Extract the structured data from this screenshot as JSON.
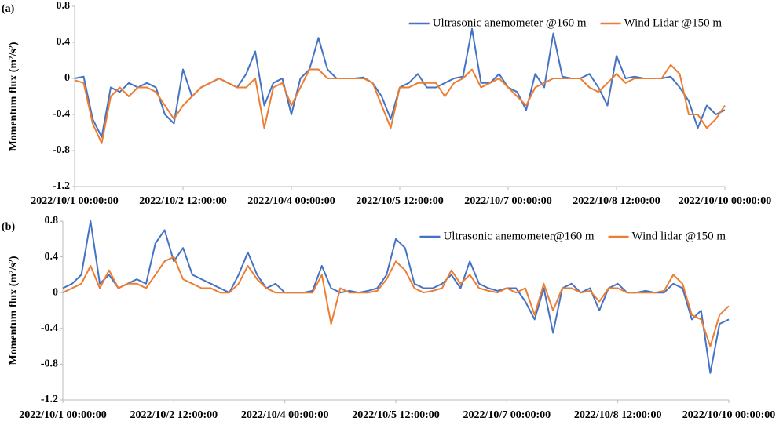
{
  "chart_data": [
    {
      "type": "line",
      "label": "(a)",
      "ylabel": "Momentum flux (m²/s²)",
      "legend": "upper right",
      "grid": false,
      "x": [
        "2022/10/1 00:00:00",
        "2022/10/1 03:00:00",
        "2022/10/1 06:00:00",
        "2022/10/1 09:00:00",
        "2022/10/1 12:00:00",
        "2022/10/1 15:00:00",
        "2022/10/1 18:00:00",
        "2022/10/1 21:00:00",
        "2022/10/2 00:00:00",
        "2022/10/2 03:00:00",
        "2022/10/2 06:00:00",
        "2022/10/2 09:00:00",
        "2022/10/2 12:00:00",
        "2022/10/2 15:00:00",
        "2022/10/2 18:00:00",
        "2022/10/2 21:00:00",
        "2022/10/3 00:00:00",
        "2022/10/3 03:00:00",
        "2022/10/3 06:00:00",
        "2022/10/3 09:00:00",
        "2022/10/3 12:00:00",
        "2022/10/3 15:00:00",
        "2022/10/3 18:00:00",
        "2022/10/3 21:00:00",
        "2022/10/4 00:00:00",
        "2022/10/4 03:00:00",
        "2022/10/4 06:00:00",
        "2022/10/4 09:00:00",
        "2022/10/4 12:00:00",
        "2022/10/4 15:00:00",
        "2022/10/4 18:00:00",
        "2022/10/4 21:00:00",
        "2022/10/5 00:00:00",
        "2022/10/5 03:00:00",
        "2022/10/5 06:00:00",
        "2022/10/5 09:00:00",
        "2022/10/5 12:00:00",
        "2022/10/5 15:00:00",
        "2022/10/5 18:00:00",
        "2022/10/5 21:00:00",
        "2022/10/6 00:00:00",
        "2022/10/6 03:00:00",
        "2022/10/6 06:00:00",
        "2022/10/6 09:00:00",
        "2022/10/6 12:00:00",
        "2022/10/6 15:00:00",
        "2022/10/6 18:00:00",
        "2022/10/6 21:00:00",
        "2022/10/7 00:00:00",
        "2022/10/7 03:00:00",
        "2022/10/7 06:00:00",
        "2022/10/7 09:00:00",
        "2022/10/7 12:00:00",
        "2022/10/7 15:00:00",
        "2022/10/7 18:00:00",
        "2022/10/7 21:00:00",
        "2022/10/8 00:00:00",
        "2022/10/8 03:00:00",
        "2022/10/8 06:00:00",
        "2022/10/8 09:00:00",
        "2022/10/8 12:00:00",
        "2022/10/8 15:00:00",
        "2022/10/8 18:00:00",
        "2022/10/8 21:00:00",
        "2022/10/9 00:00:00",
        "2022/10/9 03:00:00",
        "2022/10/9 06:00:00",
        "2022/10/9 09:00:00",
        "2022/10/9 12:00:00",
        "2022/10/9 15:00:00",
        "2022/10/9 18:00:00",
        "2022/10/9 21:00:00",
        "2022/10/10 00:00:00"
      ],
      "xlim": [
        "2022/10/1 00:00:00",
        "2022/10/10 00:00:00"
      ],
      "xticks": [
        "2022/10/1 00:00:00",
        "2022/10/2 12:00:00",
        "2022/10/4 00:00:00",
        "2022/10/5 12:00:00",
        "2022/10/7 00:00:00",
        "2022/10/8 12:00:00",
        "2022/10/10 00:00:00"
      ],
      "ylim": [
        -1.2,
        0.8
      ],
      "yticks": [
        -1.2,
        -0.8,
        -0.4,
        0,
        0.4,
        0.8
      ],
      "series": [
        {
          "name": "Ultrasonic anemometer @160 m",
          "color": "#4472c4",
          "values": [
            0,
            0.02,
            -0.45,
            -0.65,
            -0.1,
            -0.15,
            -0.05,
            -0.1,
            -0.05,
            -0.1,
            -0.4,
            -0.5,
            0.1,
            -0.2,
            -0.1,
            -0.05,
            0,
            -0.05,
            -0.1,
            0.05,
            0.3,
            -0.3,
            -0.05,
            0,
            -0.4,
            0,
            0.1,
            0.45,
            0.1,
            0,
            0,
            0,
            0.01,
            -0.05,
            -0.2,
            -0.45,
            -0.1,
            -0.05,
            0.05,
            -0.1,
            -0.1,
            -0.05,
            0,
            0.02,
            0.55,
            -0.05,
            -0.05,
            0.05,
            -0.1,
            -0.15,
            -0.35,
            0.05,
            -0.1,
            0.5,
            0.02,
            0,
            0,
            0.05,
            -0.1,
            -0.3,
            0.25,
            0,
            0.02,
            0,
            0,
            0,
            0.02,
            -0.1,
            -0.25,
            -0.55,
            -0.3,
            -0.4,
            -0.35
          ]
        },
        {
          "name": "Wind Lidar @150 m",
          "color": "#ed7d31",
          "values": [
            -0.02,
            -0.05,
            -0.5,
            -0.72,
            -0.2,
            -0.1,
            -0.2,
            -0.1,
            -0.1,
            -0.15,
            -0.3,
            -0.45,
            -0.3,
            -0.2,
            -0.1,
            -0.05,
            0,
            -0.05,
            -0.1,
            -0.1,
            0,
            -0.55,
            -0.1,
            -0.05,
            -0.3,
            -0.1,
            0.1,
            0.1,
            0,
            0,
            0,
            0,
            0,
            -0.05,
            -0.3,
            -0.55,
            -0.1,
            -0.1,
            -0.05,
            -0.05,
            -0.05,
            -0.2,
            -0.05,
            0,
            0.1,
            -0.1,
            -0.05,
            0,
            -0.1,
            -0.2,
            -0.3,
            -0.1,
            -0.05,
            0,
            0,
            0,
            0,
            -0.1,
            -0.15,
            -0.05,
            0.05,
            -0.05,
            0,
            0,
            0,
            0,
            0.15,
            0.05,
            -0.4,
            -0.4,
            -0.55,
            -0.45,
            -0.3
          ]
        }
      ]
    },
    {
      "type": "line",
      "label": "(b)",
      "ylabel": "Momentum flux (m²/s²)",
      "legend": "upper right",
      "grid": false,
      "x": [
        "2022/10/1 00:00:00",
        "2022/10/1 03:00:00",
        "2022/10/1 06:00:00",
        "2022/10/1 09:00:00",
        "2022/10/1 12:00:00",
        "2022/10/1 15:00:00",
        "2022/10/1 18:00:00",
        "2022/10/1 21:00:00",
        "2022/10/2 00:00:00",
        "2022/10/2 03:00:00",
        "2022/10/2 06:00:00",
        "2022/10/2 09:00:00",
        "2022/10/2 12:00:00",
        "2022/10/2 15:00:00",
        "2022/10/2 18:00:00",
        "2022/10/2 21:00:00",
        "2022/10/3 00:00:00",
        "2022/10/3 03:00:00",
        "2022/10/3 06:00:00",
        "2022/10/3 09:00:00",
        "2022/10/3 12:00:00",
        "2022/10/3 15:00:00",
        "2022/10/3 18:00:00",
        "2022/10/3 21:00:00",
        "2022/10/4 00:00:00",
        "2022/10/4 03:00:00",
        "2022/10/4 06:00:00",
        "2022/10/4 09:00:00",
        "2022/10/4 12:00:00",
        "2022/10/4 15:00:00",
        "2022/10/4 18:00:00",
        "2022/10/4 21:00:00",
        "2022/10/5 00:00:00",
        "2022/10/5 03:00:00",
        "2022/10/5 06:00:00",
        "2022/10/5 09:00:00",
        "2022/10/5 12:00:00",
        "2022/10/5 15:00:00",
        "2022/10/5 18:00:00",
        "2022/10/5 21:00:00",
        "2022/10/6 00:00:00",
        "2022/10/6 03:00:00",
        "2022/10/6 06:00:00",
        "2022/10/6 09:00:00",
        "2022/10/6 12:00:00",
        "2022/10/6 15:00:00",
        "2022/10/6 18:00:00",
        "2022/10/6 21:00:00",
        "2022/10/7 00:00:00",
        "2022/10/7 03:00:00",
        "2022/10/7 06:00:00",
        "2022/10/7 09:00:00",
        "2022/10/7 12:00:00",
        "2022/10/7 15:00:00",
        "2022/10/7 18:00:00",
        "2022/10/7 21:00:00",
        "2022/10/8 00:00:00",
        "2022/10/8 03:00:00",
        "2022/10/8 06:00:00",
        "2022/10/8 09:00:00",
        "2022/10/8 12:00:00",
        "2022/10/8 15:00:00",
        "2022/10/8 18:00:00",
        "2022/10/8 21:00:00",
        "2022/10/9 00:00:00",
        "2022/10/9 03:00:00",
        "2022/10/9 06:00:00",
        "2022/10/9 09:00:00",
        "2022/10/9 12:00:00",
        "2022/10/9 15:00:00",
        "2022/10/9 18:00:00",
        "2022/10/9 21:00:00",
        "2022/10/10 00:00:00"
      ],
      "xlim": [
        "2022/10/1 00:00:00",
        "2022/10/10 00:00:00"
      ],
      "xticks": [
        "2022/10/1 00:00:00",
        "2022/10/2 12:00:00",
        "2022/10/4 00:00:00",
        "2022/10/5 12:00:00",
        "2022/10/7 00:00:00",
        "2022/10/8 12:00:00",
        "2022/10/10 00:00:00"
      ],
      "ylim": [
        -1.2,
        0.8
      ],
      "yticks": [
        -1.2,
        -0.8,
        -0.4,
        0,
        0.4,
        0.8
      ],
      "series": [
        {
          "name": "Ultrasonic anemometer@160 m",
          "color": "#4472c4",
          "values": [
            0.05,
            0.1,
            0.2,
            0.8,
            0.1,
            0.2,
            0.05,
            0.1,
            0.15,
            0.1,
            0.55,
            0.7,
            0.35,
            0.5,
            0.2,
            0.15,
            0.1,
            0.05,
            0,
            0.2,
            0.45,
            0.2,
            0.05,
            0.1,
            0,
            0,
            0,
            0.02,
            0.3,
            0.05,
            0,
            0.02,
            0,
            0.02,
            0.05,
            0.2,
            0.6,
            0.5,
            0.1,
            0.05,
            0.05,
            0.1,
            0.2,
            0.05,
            0.35,
            0.1,
            0.05,
            0.02,
            0.05,
            0.05,
            -0.1,
            -0.3,
            0.05,
            -0.45,
            0.05,
            0.1,
            0,
            0.05,
            -0.2,
            0.05,
            0.1,
            0,
            0,
            0.02,
            0,
            0,
            0.1,
            0.05,
            -0.3,
            -0.2,
            -0.9,
            -0.35,
            -0.3
          ]
        },
        {
          "name": "Wind lidar @150 m",
          "color": "#ed7d31",
          "values": [
            0,
            0.05,
            0.1,
            0.3,
            0.05,
            0.25,
            0.05,
            0.1,
            0.1,
            0.05,
            0.2,
            0.35,
            0.4,
            0.15,
            0.1,
            0.05,
            0.05,
            0,
            0,
            0.1,
            0.3,
            0.15,
            0.05,
            0,
            0,
            0,
            0,
            0,
            0.2,
            -0.35,
            0.05,
            0,
            0,
            0,
            0.02,
            0.15,
            0.35,
            0.25,
            0.05,
            0,
            0.02,
            0.05,
            0.25,
            0.1,
            0.2,
            0.05,
            0.02,
            0,
            0.05,
            0,
            0.05,
            -0.25,
            0.1,
            -0.2,
            0.05,
            0.05,
            0,
            0.02,
            -0.1,
            0.05,
            0.05,
            0,
            0,
            0,
            0,
            0.02,
            0.2,
            0.1,
            -0.25,
            -0.3,
            -0.6,
            -0.25,
            -0.15
          ]
        }
      ]
    }
  ]
}
